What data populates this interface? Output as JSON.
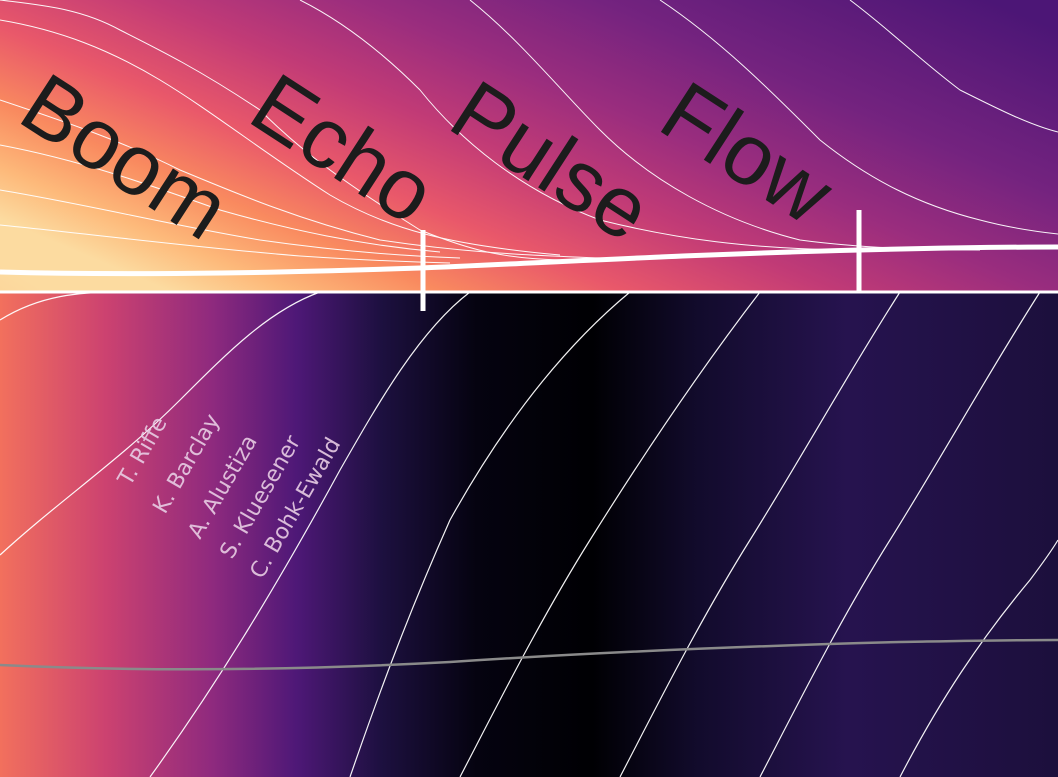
{
  "headings": [
    "Boom",
    "Echo",
    "Pulse",
    "Flow"
  ],
  "authors": [
    "T. Riffe",
    "K. Barclay",
    "A. Alustiza",
    "S. Kluesener",
    "C. Bohk-Ewald"
  ],
  "colors": {
    "background": "#000004",
    "word_fill": "#1c1c1c",
    "author_text": "#e8cde4",
    "contour_line": "#ffffff",
    "lower_curve": "#8a8a8a",
    "palette": [
      "#fcd998",
      "#fca56a",
      "#f4735c",
      "#de4f67",
      "#b73779",
      "#8d297e",
      "#6a1d80",
      "#481879",
      "#2c1558",
      "#1a0f35",
      "#0a0716",
      "#000004"
    ]
  }
}
